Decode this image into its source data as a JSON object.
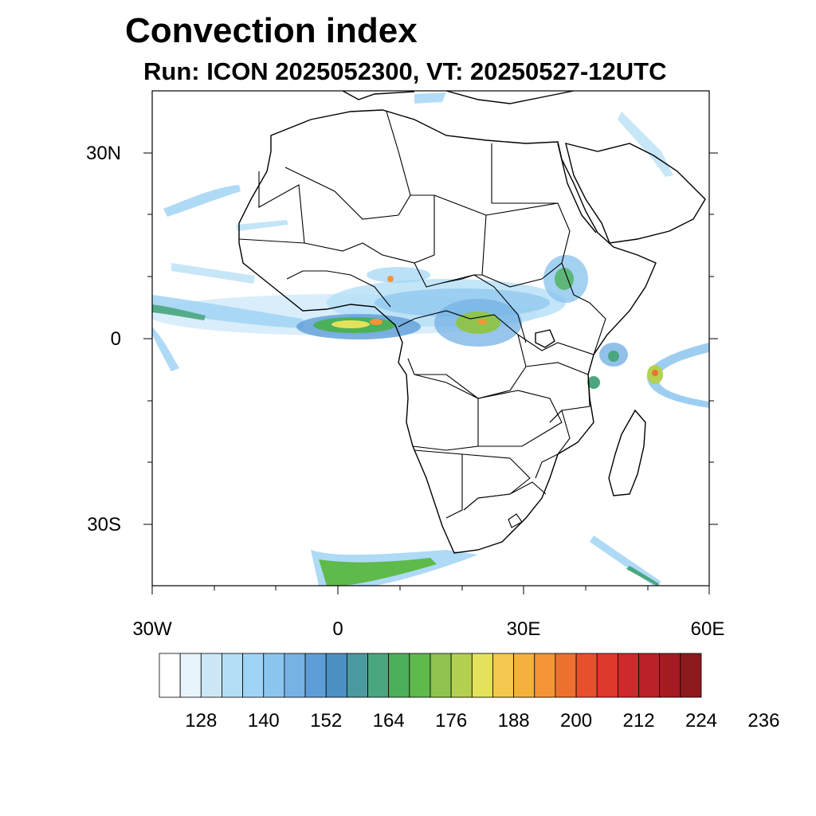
{
  "title": "Convection index",
  "subtitle": "Run: ICON 2025052300,  VT: 20250527-12UTC",
  "axes": {
    "lat_labels": [
      "30N",
      "0",
      "30S"
    ],
    "lon_labels": [
      "30W",
      "0",
      "30E",
      "60E"
    ]
  },
  "colorbar": {
    "labels": [
      "128",
      "140",
      "152",
      "164",
      "176",
      "188",
      "200",
      "212",
      "224",
      "236"
    ],
    "colors": [
      "#ffffff",
      "#e8f4fc",
      "#cce8f8",
      "#b4def6",
      "#a0d4f4",
      "#8cc6ee",
      "#76b2e4",
      "#5e9ed8",
      "#4c90c4",
      "#4a9aa0",
      "#4aa67e",
      "#4cb05a",
      "#5eba4a",
      "#8ec44e",
      "#b4d050",
      "#e4e25a",
      "#f4c84e",
      "#f6b040",
      "#f49436",
      "#ee7030",
      "#e6502c",
      "#dc3a2c",
      "#cc2a2c",
      "#b82228",
      "#a41c22",
      "#8c1a1c"
    ]
  },
  "chart_data": {
    "type": "heatmap",
    "title": "Convection index",
    "subtitle": "Run: ICON 2025052300,  VT: 20250527-12UTC",
    "xlabel": "",
    "ylabel": "",
    "xlim": [
      -30,
      60
    ],
    "ylim": [
      -40,
      40
    ],
    "x_ticks": [
      "30W",
      "0",
      "30E",
      "60E"
    ],
    "y_ticks": [
      "30N",
      "0",
      "30S"
    ],
    "colorbar_labels": [
      128,
      140,
      152,
      164,
      176,
      188,
      200,
      212,
      224,
      236
    ],
    "colorbar_step": 4
  }
}
